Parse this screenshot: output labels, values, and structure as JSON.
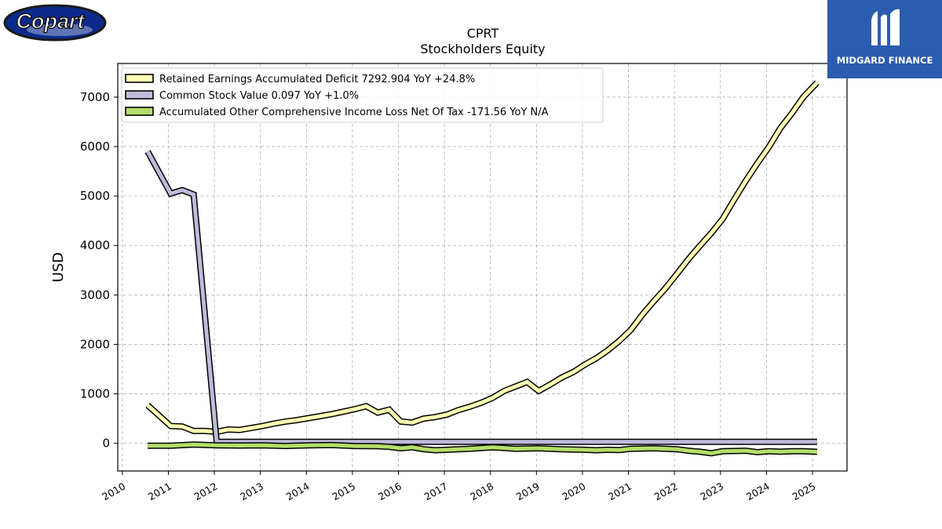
{
  "logos": {
    "left_text": "Copart",
    "right_text": "MIDGARD FINANCE"
  },
  "chart_data": {
    "type": "line",
    "title": "CPRT",
    "subtitle": "Stockholders  Equity",
    "ylabel": "USD",
    "xlabel": "",
    "xlim": [
      2009.9,
      2025.75
    ],
    "ylim": [
      -560,
      7680
    ],
    "yticks": [
      0,
      1000,
      2000,
      3000,
      4000,
      5000,
      6000,
      7000
    ],
    "xticks": [
      2010,
      2011,
      2012,
      2013,
      2014,
      2015,
      2016,
      2017,
      2018,
      2019,
      2020,
      2021,
      2022,
      2023,
      2024,
      2025
    ],
    "grid": true,
    "legend_position": "top-left",
    "series": [
      {
        "name": "Retained Earnings Accumulated Deficit  7292.904 YoY +24.8%",
        "color": "#ffffb3",
        "points": [
          [
            2010.55,
            770
          ],
          [
            2011.05,
            350
          ],
          [
            2011.3,
            340
          ],
          [
            2011.55,
            250
          ],
          [
            2011.8,
            250
          ],
          [
            2012.05,
            230
          ],
          [
            2012.3,
            280
          ],
          [
            2012.55,
            270
          ],
          [
            2012.8,
            310
          ],
          [
            2013.05,
            350
          ],
          [
            2013.3,
            400
          ],
          [
            2013.55,
            440
          ],
          [
            2013.8,
            470
          ],
          [
            2014.05,
            510
          ],
          [
            2014.3,
            550
          ],
          [
            2014.55,
            590
          ],
          [
            2014.8,
            640
          ],
          [
            2015.05,
            690
          ],
          [
            2015.3,
            750
          ],
          [
            2015.55,
            620
          ],
          [
            2015.8,
            680
          ],
          [
            2016.05,
            440
          ],
          [
            2016.3,
            420
          ],
          [
            2016.55,
            500
          ],
          [
            2016.8,
            530
          ],
          [
            2017.05,
            580
          ],
          [
            2017.3,
            670
          ],
          [
            2017.55,
            740
          ],
          [
            2017.8,
            820
          ],
          [
            2018.05,
            920
          ],
          [
            2018.3,
            1060
          ],
          [
            2018.55,
            1150
          ],
          [
            2018.8,
            1240
          ],
          [
            2019.05,
            1060
          ],
          [
            2019.3,
            1190
          ],
          [
            2019.55,
            1330
          ],
          [
            2019.8,
            1440
          ],
          [
            2020.05,
            1590
          ],
          [
            2020.3,
            1720
          ],
          [
            2020.55,
            1880
          ],
          [
            2020.8,
            2070
          ],
          [
            2021.05,
            2290
          ],
          [
            2021.3,
            2600
          ],
          [
            2021.55,
            2870
          ],
          [
            2021.8,
            3130
          ],
          [
            2022.05,
            3420
          ],
          [
            2022.3,
            3720
          ],
          [
            2022.55,
            3990
          ],
          [
            2022.8,
            4250
          ],
          [
            2023.05,
            4540
          ],
          [
            2023.3,
            4930
          ],
          [
            2023.55,
            5310
          ],
          [
            2023.8,
            5660
          ],
          [
            2024.05,
            5990
          ],
          [
            2024.3,
            6370
          ],
          [
            2024.55,
            6670
          ],
          [
            2024.8,
            7000
          ],
          [
            2025.1,
            7293
          ]
        ]
      },
      {
        "name": "Common Stock Value  0.097 YoY +1.0%",
        "color": "#bebada",
        "points": [
          [
            2010.55,
            5900
          ],
          [
            2011.05,
            5050
          ],
          [
            2011.3,
            5120
          ],
          [
            2011.55,
            5030
          ],
          [
            2012.05,
            30
          ],
          [
            2013.0,
            30
          ],
          [
            2014.0,
            30
          ],
          [
            2015.0,
            30
          ],
          [
            2016.0,
            30
          ],
          [
            2017.0,
            30
          ],
          [
            2018.0,
            30
          ],
          [
            2019.0,
            30
          ],
          [
            2020.0,
            30
          ],
          [
            2021.0,
            30
          ],
          [
            2022.0,
            30
          ],
          [
            2023.0,
            30
          ],
          [
            2024.0,
            30
          ],
          [
            2025.1,
            30
          ]
        ]
      },
      {
        "name": "Accumulated Other Comprehensive Income Loss Net Of Tax  -171.56 YoY N/A",
        "color": "#b3de69",
        "points": [
          [
            2010.55,
            -50
          ],
          [
            2011.05,
            -50
          ],
          [
            2011.55,
            -25
          ],
          [
            2012.05,
            -40
          ],
          [
            2012.55,
            -45
          ],
          [
            2013.05,
            -40
          ],
          [
            2013.55,
            -55
          ],
          [
            2014.05,
            -40
          ],
          [
            2014.55,
            -35
          ],
          [
            2015.05,
            -55
          ],
          [
            2015.55,
            -60
          ],
          [
            2015.8,
            -70
          ],
          [
            2016.05,
            -100
          ],
          [
            2016.3,
            -80
          ],
          [
            2016.55,
            -120
          ],
          [
            2016.8,
            -140
          ],
          [
            2017.05,
            -130
          ],
          [
            2017.55,
            -110
          ],
          [
            2018.05,
            -80
          ],
          [
            2018.55,
            -110
          ],
          [
            2019.05,
            -100
          ],
          [
            2019.55,
            -120
          ],
          [
            2020.05,
            -130
          ],
          [
            2020.3,
            -140
          ],
          [
            2020.55,
            -130
          ],
          [
            2020.8,
            -135
          ],
          [
            2021.05,
            -110
          ],
          [
            2021.55,
            -100
          ],
          [
            2022.05,
            -120
          ],
          [
            2022.3,
            -150
          ],
          [
            2022.55,
            -170
          ],
          [
            2022.8,
            -200
          ],
          [
            2023.05,
            -160
          ],
          [
            2023.55,
            -150
          ],
          [
            2023.8,
            -180
          ],
          [
            2024.05,
            -160
          ],
          [
            2024.3,
            -170
          ],
          [
            2024.55,
            -160
          ],
          [
            2024.8,
            -160
          ],
          [
            2025.1,
            -172
          ]
        ]
      }
    ]
  }
}
